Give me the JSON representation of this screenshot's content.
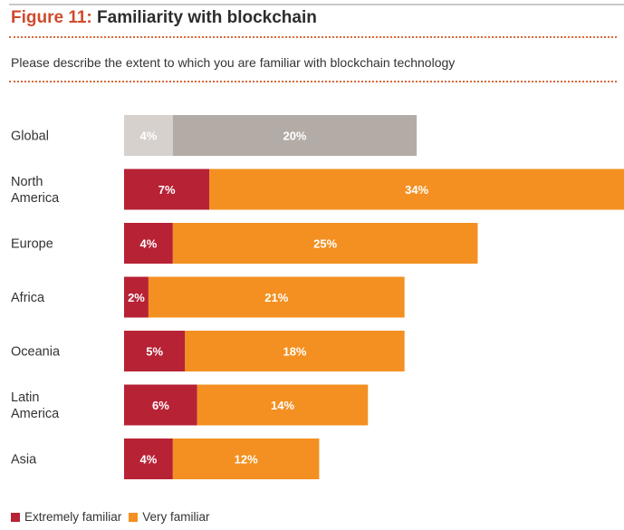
{
  "header": {
    "figure_number": "Figure 11:",
    "figure_title": "Familiarity with blockchain",
    "subtitle": "Please describe the extent to which you are familiar with blockchain technology"
  },
  "colors": {
    "extremely_familiar": "#b72235",
    "very_familiar": "#f39021",
    "global_extremely": "#d6d1cd",
    "global_very": "#b3aca6"
  },
  "chart_data": {
    "type": "bar",
    "orientation": "horizontal",
    "stacked": true,
    "categories": [
      "Global",
      "North America",
      "Europe",
      "Africa",
      "Oceania",
      "Latin America",
      "Asia"
    ],
    "category_lines": [
      [
        "Global"
      ],
      [
        "North",
        "America"
      ],
      [
        "Europe"
      ],
      [
        "Africa"
      ],
      [
        "Oceania"
      ],
      [
        "Latin",
        "America"
      ],
      [
        "Asia"
      ]
    ],
    "series": [
      {
        "name": "Extremely familiar",
        "values": [
          4,
          7,
          4,
          2,
          5,
          6,
          4
        ]
      },
      {
        "name": "Very familiar",
        "values": [
          20,
          34,
          25,
          21,
          18,
          14,
          12
        ]
      }
    ],
    "value_labels": [
      [
        "4%",
        "7%",
        "4%",
        "2%",
        "5%",
        "6%",
        "4%"
      ],
      [
        "20%",
        "34%",
        "25%",
        "21%",
        "18%",
        "14%",
        "12%"
      ]
    ],
    "highlight_category": "Global",
    "xlim": [
      0,
      41
    ],
    "grid": false,
    "legend_position": "bottom-left"
  }
}
